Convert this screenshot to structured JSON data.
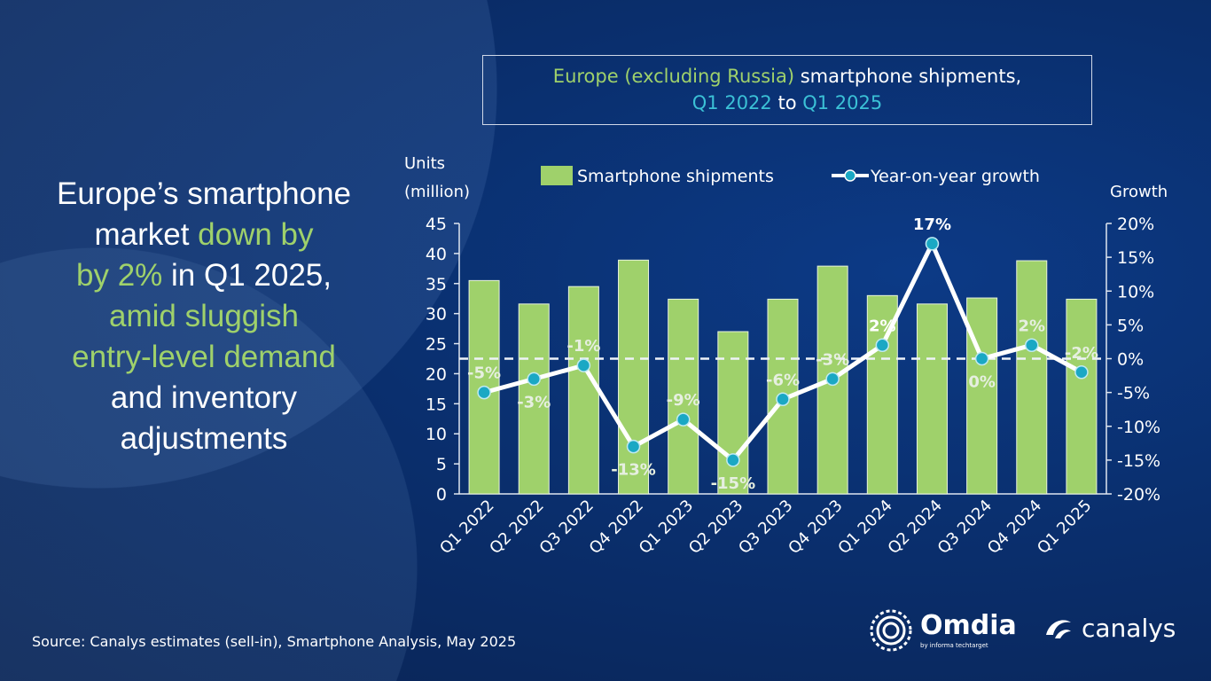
{
  "headline": {
    "line1": "Europe’s smartphone",
    "line2a": "market ",
    "line2b": "down by",
    "line3a": "by 2%",
    "line3b": " in Q1 2025,",
    "line4": "amid sluggish",
    "line5": "entry-level demand",
    "line6": "and inventory",
    "line7": "adjustments"
  },
  "source": "Source: Canalys estimates (sell-in), Smartphone Analysis, May 2025",
  "logos": {
    "omdia": "Omdia",
    "omdia_sub": "by informa techtarget",
    "canalys": "canalys"
  },
  "colors": {
    "bar": "#9fd16b",
    "line": "#ffffff",
    "marker": "#1aa8c4",
    "background": "#0a2f6e"
  },
  "chart_data": {
    "type": "bar+line",
    "title": {
      "part1": "Europe (excluding Russia)",
      "part2": " smartphone shipments,",
      "part3": "Q1 2022",
      "part4": " to ",
      "part5": "Q1 2025"
    },
    "ylabel_left": [
      "Units",
      "(million)"
    ],
    "ylabel_right": "Growth",
    "legend": {
      "bar": "Smartphone shipments",
      "line": "Year-on-year growth",
      "position": "top"
    },
    "categories": [
      "Q1 2022",
      "Q2 2022",
      "Q3 2022",
      "Q4 2022",
      "Q1 2023",
      "Q2 2023",
      "Q3 2023",
      "Q4 2023",
      "Q1 2024",
      "Q2 2024",
      "Q3 2024",
      "Q4 2024",
      "Q1 2025"
    ],
    "series": [
      {
        "name": "Smartphone shipments",
        "axis": "left",
        "values": [
          35.5,
          31.6,
          34.5,
          38.9,
          32.4,
          27.0,
          32.4,
          37.9,
          33.0,
          31.6,
          32.6,
          38.8,
          32.4
        ]
      },
      {
        "name": "Year-on-year growth",
        "axis": "right",
        "values": [
          -5,
          -3,
          -1,
          -13,
          -9,
          -15,
          -6,
          -3,
          2,
          17,
          0,
          2,
          -2
        ],
        "labels": [
          "-5%",
          "-3%",
          "-1%",
          "-13%",
          "-9%",
          "-15%",
          "-6%",
          "-3%",
          "2%",
          "17%",
          "0%",
          "2%",
          "-2%"
        ]
      }
    ],
    "ylim_left": [
      0,
      45
    ],
    "yticks_left": [
      "0",
      "5",
      "10",
      "15",
      "20",
      "25",
      "30",
      "35",
      "40",
      "45"
    ],
    "ylim_right": [
      -20,
      20
    ],
    "yticks_right": [
      "-20%",
      "-15%",
      "-10%",
      "-5%",
      "0%",
      "5%",
      "10%",
      "15%",
      "20%"
    ],
    "zero_growth_line": "dashed",
    "grid": false
  }
}
